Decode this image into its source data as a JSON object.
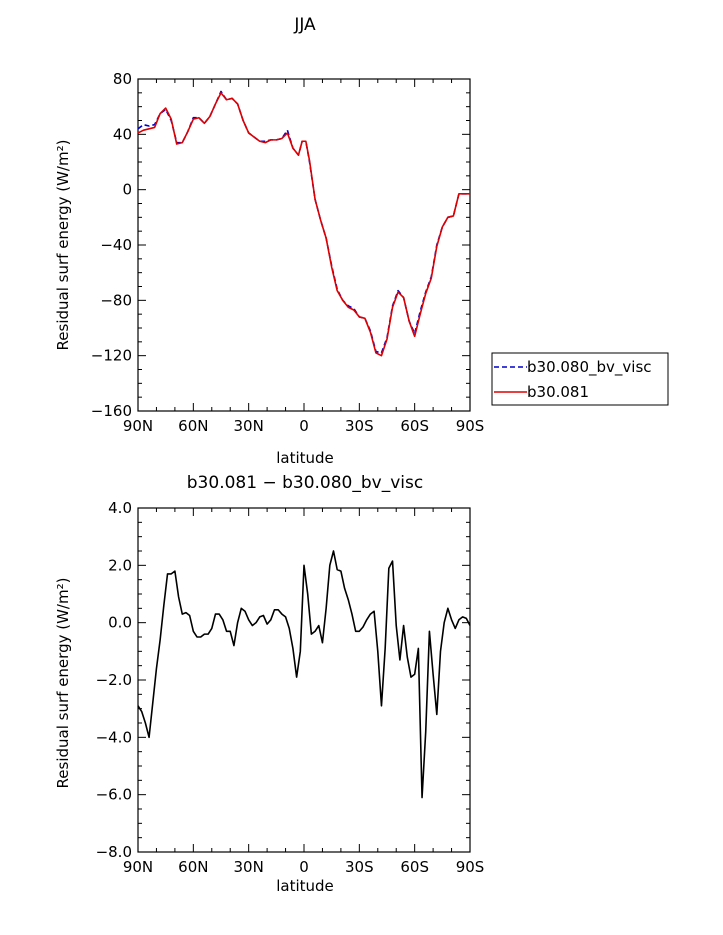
{
  "chart_data": [
    {
      "type": "line",
      "title": "JJA",
      "xlabel": "latitude",
      "ylabel": "Residual surf energy (W/m²)",
      "xlim": [
        90,
        -90
      ],
      "ylim": [
        -160,
        80
      ],
      "yticks": [
        "80",
        "40",
        "0",
        "−40",
        "−80",
        "−120",
        "−160"
      ],
      "xticks": [
        "90N",
        "60N",
        "30N",
        "0",
        "30S",
        "60S",
        "90S"
      ],
      "legend": "right",
      "series": [
        {
          "name": "b30.080_bv_visc",
          "color": "#0000cc",
          "dash": "dashed",
          "x": [
            90,
            87,
            84,
            81,
            78,
            75,
            72,
            69,
            66,
            63,
            60,
            57,
            54,
            51,
            48,
            45,
            42,
            39,
            36,
            33,
            30,
            27,
            24,
            21,
            18,
            15,
            12,
            9,
            6,
            3,
            1,
            -1,
            -3,
            -6,
            -9,
            -12,
            -15,
            -18,
            -21,
            -24,
            -27,
            -30,
            -33,
            -36,
            -39,
            -42,
            -45,
            -48,
            -51,
            -54,
            -57,
            -60,
            -63,
            -66,
            -69,
            -72,
            -75,
            -78,
            -81,
            -84,
            -87,
            -90
          ],
          "y": [
            44,
            47,
            46,
            47,
            55,
            58,
            50,
            34,
            34,
            42,
            52,
            52,
            48,
            53,
            62,
            71,
            65,
            66,
            62,
            50,
            41,
            38,
            35,
            35,
            36,
            36,
            37,
            43,
            30,
            25,
            35,
            35,
            20,
            -7,
            -22,
            -35,
            -55,
            -72,
            -80,
            -84,
            -86,
            -92,
            -93,
            -102,
            -117,
            -118,
            -107,
            -84,
            -73,
            -78,
            -95,
            -104,
            -88,
            -74,
            -63,
            -40,
            -27,
            -20,
            -19,
            -3,
            -3,
            -3
          ]
        },
        {
          "name": "b30.081",
          "color": "#dd0000",
          "dash": "solid",
          "x": [
            90,
            87,
            84,
            81,
            78,
            75,
            72,
            69,
            66,
            63,
            60,
            57,
            54,
            51,
            48,
            45,
            42,
            39,
            36,
            33,
            30,
            27,
            24,
            21,
            18,
            15,
            12,
            9,
            6,
            3,
            1,
            -1,
            -3,
            -6,
            -9,
            -12,
            -15,
            -18,
            -21,
            -24,
            -27,
            -30,
            -33,
            -36,
            -39,
            -42,
            -45,
            -48,
            -51,
            -54,
            -57,
            -60,
            -63,
            -66,
            -69,
            -72,
            -75,
            -78,
            -81,
            -84,
            -87,
            -90
          ],
          "y": [
            41,
            43,
            44,
            45,
            55,
            59,
            51,
            33,
            34,
            42,
            51,
            52,
            48,
            53,
            62,
            70,
            65,
            66,
            62,
            50,
            41,
            38,
            35,
            34,
            36,
            36,
            37,
            41,
            30,
            25,
            35,
            35,
            21,
            -7,
            -22,
            -35,
            -56,
            -73,
            -80,
            -85,
            -87,
            -92,
            -93,
            -103,
            -118,
            -120,
            -108,
            -85,
            -74,
            -78,
            -95,
            -106,
            -90,
            -75,
            -64,
            -41,
            -27,
            -20,
            -19,
            -3,
            -3,
            -3
          ]
        }
      ]
    },
    {
      "type": "line",
      "title": "b30.081 − b30.080_bv_visc",
      "xlabel": "latitude",
      "ylabel": "Residual surf energy (W/m²)",
      "xlim": [
        90,
        -90
      ],
      "ylim": [
        -8,
        4
      ],
      "yticks": [
        "4.0",
        "2.0",
        "0.0",
        "−2.0",
        "−4.0",
        "−6.0",
        "−8.0"
      ],
      "xticks": [
        "90N",
        "60N",
        "30N",
        "0",
        "30S",
        "60S",
        "90S"
      ],
      "series": [
        {
          "color": "#000000",
          "dash": "solid",
          "x": [
            90,
            88,
            86,
            84,
            82,
            80,
            78,
            76,
            74,
            72,
            70,
            68,
            66,
            64,
            62,
            60,
            58,
            56,
            54,
            52,
            50,
            48,
            46,
            44,
            42,
            40,
            38,
            36,
            34,
            32,
            30,
            28,
            26,
            24,
            22,
            20,
            18,
            16,
            14,
            12,
            10,
            8,
            6,
            4,
            2,
            0,
            -2,
            -4,
            -6,
            -8,
            -10,
            -12,
            -14,
            -16,
            -18,
            -20,
            -22,
            -24,
            -26,
            -28,
            -30,
            -32,
            -34,
            -36,
            -38,
            -40,
            -42,
            -44,
            -46,
            -48,
            -50,
            -52,
            -54,
            -56,
            -58,
            -60,
            -62,
            -64,
            -66,
            -68,
            -70,
            -72,
            -74,
            -76,
            -78,
            -80,
            -82,
            -84,
            -86,
            -88,
            -90
          ],
          "y": [
            -2.9,
            -3.1,
            -3.5,
            -4.0,
            -2.8,
            -1.6,
            -0.6,
            0.6,
            1.7,
            1.7,
            1.8,
            0.9,
            0.3,
            0.35,
            0.25,
            -0.3,
            -0.5,
            -0.5,
            -0.4,
            -0.4,
            -0.2,
            0.3,
            0.3,
            0.1,
            -0.3,
            -0.3,
            -0.8,
            0.0,
            0.5,
            0.4,
            0.1,
            -0.1,
            0.0,
            0.2,
            0.25,
            -0.05,
            0.1,
            0.45,
            0.45,
            0.3,
            0.2,
            -0.2,
            -0.9,
            -1.9,
            -1.0,
            2.0,
            1.0,
            -0.4,
            -0.3,
            -0.1,
            -0.7,
            0.5,
            2.0,
            2.5,
            1.85,
            1.8,
            1.2,
            0.8,
            0.3,
            -0.3,
            -0.3,
            -0.15,
            0.1,
            0.3,
            0.4,
            -1.0,
            -2.9,
            -0.9,
            1.9,
            2.15,
            -0.1,
            -1.3,
            -0.1,
            -1.2,
            -1.9,
            -1.8,
            -0.9,
            -6.1,
            -3.8,
            -0.3,
            -1.8,
            -3.2,
            -1.0,
            0.0,
            0.5,
            0.1,
            -0.2,
            0.1,
            0.2,
            0.15,
            -0.1
          ]
        }
      ]
    }
  ]
}
